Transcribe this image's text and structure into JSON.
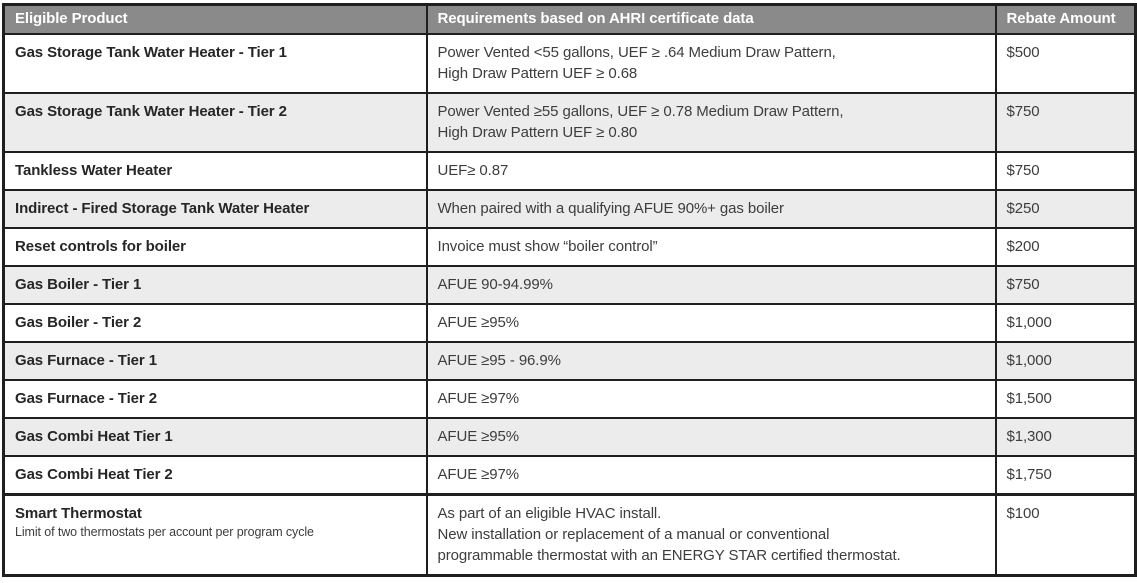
{
  "colors": {
    "header_bg": "#8a8a8a",
    "header_text": "#ffffff",
    "row_alt_bg": "#ececec",
    "border": "#1f1f1f",
    "text": "#3d3d3d"
  },
  "table": {
    "columns": [
      {
        "label": "Eligible Product"
      },
      {
        "label": "Requirements based on AHRI certificate data"
      },
      {
        "label": "Rebate Amount"
      }
    ],
    "rows": [
      {
        "product": "Gas Storage Tank Water Heater - Tier 1",
        "note": "",
        "requirements": [
          "Power Vented <55 gallons, UEF ≥ .64 Medium Draw Pattern,",
          "High Draw Pattern UEF ≥ 0.68"
        ],
        "rebate": "$500",
        "shaded": false
      },
      {
        "product": "Gas Storage Tank Water Heater - Tier 2",
        "note": "",
        "requirements": [
          "Power Vented ≥55 gallons, UEF ≥ 0.78 Medium Draw Pattern,",
          "High Draw Pattern UEF ≥ 0.80"
        ],
        "rebate": "$750",
        "shaded": true
      },
      {
        "product": "Tankless Water Heater",
        "note": "",
        "requirements": [
          "UEF≥ 0.87"
        ],
        "rebate": "$750",
        "shaded": false
      },
      {
        "product": "Indirect - Fired Storage Tank Water Heater",
        "note": "",
        "requirements": [
          "When paired with a qualifying AFUE 90%+ gas boiler"
        ],
        "rebate": "$250",
        "shaded": true
      },
      {
        "product": "Reset controls for boiler",
        "note": "",
        "requirements": [
          "Invoice must show “boiler control”"
        ],
        "rebate": "$200",
        "shaded": false
      },
      {
        "product": "Gas Boiler - Tier 1",
        "note": "",
        "requirements": [
          "AFUE 90-94.99%"
        ],
        "rebate": "$750",
        "shaded": true
      },
      {
        "product": "Gas Boiler - Tier 2",
        "note": "",
        "requirements": [
          "AFUE ≥95%"
        ],
        "rebate": "$1,000",
        "shaded": false
      },
      {
        "product": "Gas Furnace - Tier 1",
        "note": "",
        "requirements": [
          "AFUE ≥95 - 96.9%"
        ],
        "rebate": "$1,000",
        "shaded": true
      },
      {
        "product": "Gas Furnace - Tier 2",
        "note": "",
        "requirements": [
          "AFUE ≥97%"
        ],
        "rebate": "$1,500",
        "shaded": false
      },
      {
        "product": "Gas Combi Heat Tier 1",
        "note": "",
        "requirements": [
          "AFUE ≥95%"
        ],
        "rebate": "$1,300",
        "shaded": true
      },
      {
        "product": "Gas Combi Heat Tier 2",
        "note": "",
        "requirements": [
          "AFUE ≥97%"
        ],
        "rebate": "$1,750",
        "shaded": false
      },
      {
        "product": "Smart Thermostat",
        "note": "Limit of two thermostats per account per program cycle",
        "requirements": [
          "As part of an eligible HVAC install.",
          "New installation or replacement of a manual or conventional",
          "programmable thermostat with an ENERGY STAR certified thermostat."
        ],
        "rebate": "$100",
        "shaded": false
      }
    ]
  }
}
